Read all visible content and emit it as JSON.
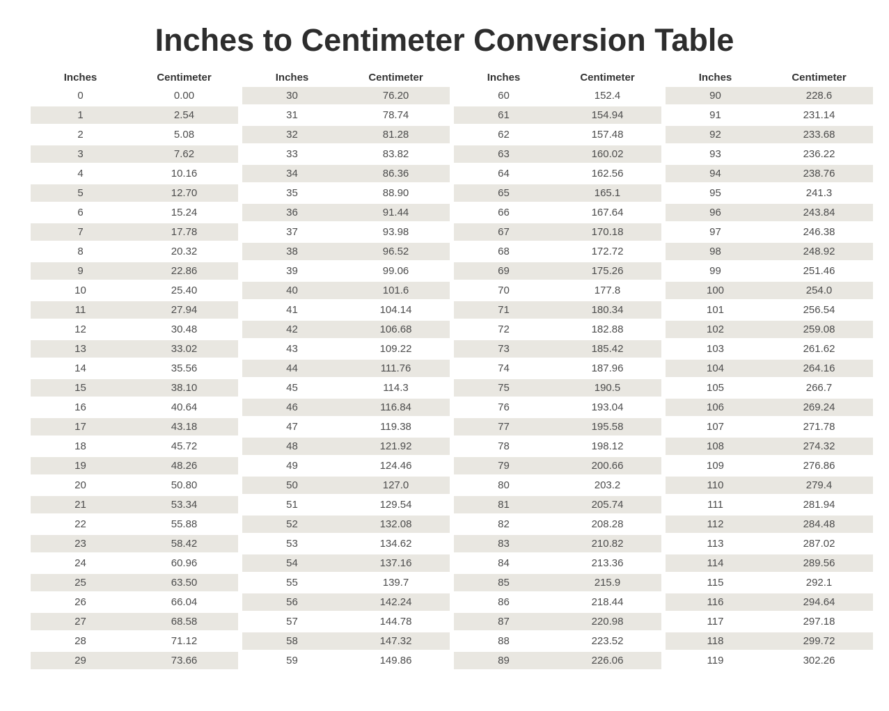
{
  "title": "Inches to Centimeter Conversion Table",
  "colors": {
    "page_bg": "#ffffff",
    "row_shaded_bg": "#e9e7e1",
    "row_plain_bg": "#ffffff",
    "title_text": "#2d2d2d",
    "header_text": "#333333",
    "cell_text": "#4c4c4c"
  },
  "chart_data": {
    "type": "table",
    "title": "Inches to Centimeter Conversion Table",
    "column_headers": {
      "inches": "Inches",
      "centimeter": "Centimeter"
    },
    "layout_hints": {
      "column_groups": 4,
      "rows_per_group": 30,
      "grid": "zebra-striped rows, checkerboard phase across groups",
      "legend": "none"
    },
    "groups": [
      {
        "stripe": "odd",
        "rows": [
          [
            "0",
            "0.00"
          ],
          [
            "1",
            "2.54"
          ],
          [
            "2",
            "5.08"
          ],
          [
            "3",
            "7.62"
          ],
          [
            "4",
            "10.16"
          ],
          [
            "5",
            "12.70"
          ],
          [
            "6",
            "15.24"
          ],
          [
            "7",
            "17.78"
          ],
          [
            "8",
            "20.32"
          ],
          [
            "9",
            "22.86"
          ],
          [
            "10",
            "25.40"
          ],
          [
            "11",
            "27.94"
          ],
          [
            "12",
            "30.48"
          ],
          [
            "13",
            "33.02"
          ],
          [
            "14",
            "35.56"
          ],
          [
            "15",
            "38.10"
          ],
          [
            "16",
            "40.64"
          ],
          [
            "17",
            "43.18"
          ],
          [
            "18",
            "45.72"
          ],
          [
            "19",
            "48.26"
          ],
          [
            "20",
            "50.80"
          ],
          [
            "21",
            "53.34"
          ],
          [
            "22",
            "55.88"
          ],
          [
            "23",
            "58.42"
          ],
          [
            "24",
            "60.96"
          ],
          [
            "25",
            "63.50"
          ],
          [
            "26",
            "66.04"
          ],
          [
            "27",
            "68.58"
          ],
          [
            "28",
            "71.12"
          ],
          [
            "29",
            "73.66"
          ]
        ]
      },
      {
        "stripe": "even",
        "rows": [
          [
            "30",
            "76.20"
          ],
          [
            "31",
            "78.74"
          ],
          [
            "32",
            "81.28"
          ],
          [
            "33",
            "83.82"
          ],
          [
            "34",
            "86.36"
          ],
          [
            "35",
            "88.90"
          ],
          [
            "36",
            "91.44"
          ],
          [
            "37",
            "93.98"
          ],
          [
            "38",
            "96.52"
          ],
          [
            "39",
            "99.06"
          ],
          [
            "40",
            "101.6"
          ],
          [
            "41",
            "104.14"
          ],
          [
            "42",
            "106.68"
          ],
          [
            "43",
            "109.22"
          ],
          [
            "44",
            "111.76"
          ],
          [
            "45",
            "114.3"
          ],
          [
            "46",
            "116.84"
          ],
          [
            "47",
            "119.38"
          ],
          [
            "48",
            "121.92"
          ],
          [
            "49",
            "124.46"
          ],
          [
            "50",
            "127.0"
          ],
          [
            "51",
            "129.54"
          ],
          [
            "52",
            "132.08"
          ],
          [
            "53",
            "134.62"
          ],
          [
            "54",
            "137.16"
          ],
          [
            "55",
            "139.7"
          ],
          [
            "56",
            "142.24"
          ],
          [
            "57",
            "144.78"
          ],
          [
            "58",
            "147.32"
          ],
          [
            "59",
            "149.86"
          ]
        ]
      },
      {
        "stripe": "odd",
        "rows": [
          [
            "60",
            "152.4"
          ],
          [
            "61",
            "154.94"
          ],
          [
            "62",
            "157.48"
          ],
          [
            "63",
            "160.02"
          ],
          [
            "64",
            "162.56"
          ],
          [
            "65",
            "165.1"
          ],
          [
            "66",
            "167.64"
          ],
          [
            "67",
            "170.18"
          ],
          [
            "68",
            "172.72"
          ],
          [
            "69",
            "175.26"
          ],
          [
            "70",
            "177.8"
          ],
          [
            "71",
            "180.34"
          ],
          [
            "72",
            "182.88"
          ],
          [
            "73",
            "185.42"
          ],
          [
            "74",
            "187.96"
          ],
          [
            "75",
            "190.5"
          ],
          [
            "76",
            "193.04"
          ],
          [
            "77",
            "195.58"
          ],
          [
            "78",
            "198.12"
          ],
          [
            "79",
            "200.66"
          ],
          [
            "80",
            "203.2"
          ],
          [
            "81",
            "205.74"
          ],
          [
            "82",
            "208.28"
          ],
          [
            "83",
            "210.82"
          ],
          [
            "84",
            "213.36"
          ],
          [
            "85",
            "215.9"
          ],
          [
            "86",
            "218.44"
          ],
          [
            "87",
            "220.98"
          ],
          [
            "88",
            "223.52"
          ],
          [
            "89",
            "226.06"
          ]
        ]
      },
      {
        "stripe": "even",
        "rows": [
          [
            "90",
            "228.6"
          ],
          [
            "91",
            "231.14"
          ],
          [
            "92",
            "233.68"
          ],
          [
            "93",
            "236.22"
          ],
          [
            "94",
            "238.76"
          ],
          [
            "95",
            "241.3"
          ],
          [
            "96",
            "243.84"
          ],
          [
            "97",
            "246.38"
          ],
          [
            "98",
            "248.92"
          ],
          [
            "99",
            "251.46"
          ],
          [
            "100",
            "254.0"
          ],
          [
            "101",
            "256.54"
          ],
          [
            "102",
            "259.08"
          ],
          [
            "103",
            "261.62"
          ],
          [
            "104",
            "264.16"
          ],
          [
            "105",
            "266.7"
          ],
          [
            "106",
            "269.24"
          ],
          [
            "107",
            "271.78"
          ],
          [
            "108",
            "274.32"
          ],
          [
            "109",
            "276.86"
          ],
          [
            "110",
            "279.4"
          ],
          [
            "111",
            "281.94"
          ],
          [
            "112",
            "284.48"
          ],
          [
            "113",
            "287.02"
          ],
          [
            "114",
            "289.56"
          ],
          [
            "115",
            "292.1"
          ],
          [
            "116",
            "294.64"
          ],
          [
            "117",
            "297.18"
          ],
          [
            "118",
            "299.72"
          ],
          [
            "119",
            "302.26"
          ]
        ]
      }
    ]
  }
}
